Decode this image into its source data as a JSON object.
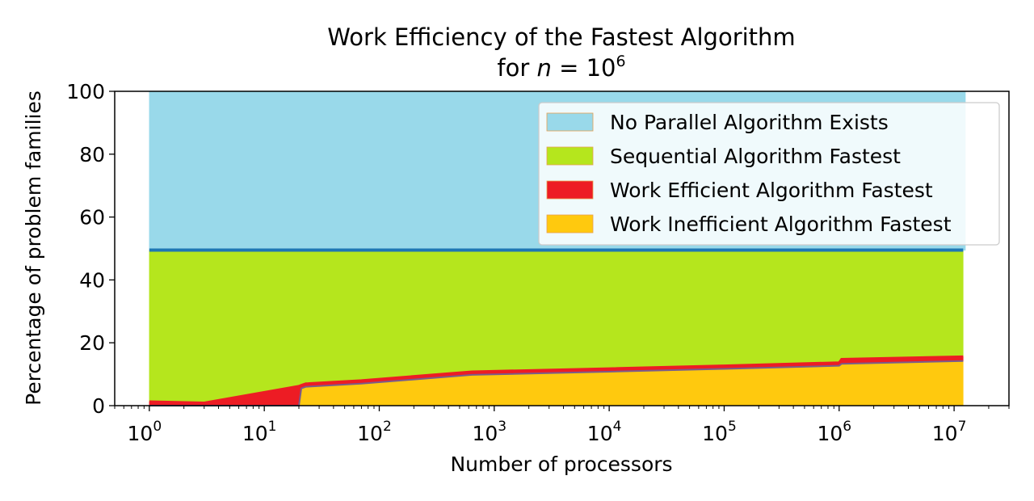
{
  "chart_data": {
    "type": "area",
    "title": "Work Efficiency of the Fastest Algorithm",
    "subtitle_prefix": "for ",
    "subtitle_var": "n",
    "subtitle_eq": " = 10",
    "subtitle_exp": "6",
    "xlabel": "Number of processors",
    "ylabel": "Percentage of problem families",
    "xscale": "log",
    "xlim": [
      0.5,
      30000000
    ],
    "ylim": [
      0,
      100
    ],
    "xticks": [
      {
        "value": 1,
        "base": "10",
        "exp": "0"
      },
      {
        "value": 10,
        "base": "10",
        "exp": "1"
      },
      {
        "value": 100,
        "base": "10",
        "exp": "2"
      },
      {
        "value": 1000,
        "base": "10",
        "exp": "3"
      },
      {
        "value": 10000,
        "base": "10",
        "exp": "4"
      },
      {
        "value": 100000,
        "base": "10",
        "exp": "5"
      },
      {
        "value": 1000000,
        "base": "10",
        "exp": "6"
      },
      {
        "value": 10000000,
        "base": "10",
        "exp": "7"
      }
    ],
    "yticks": [
      "0",
      "20",
      "40",
      "60",
      "80",
      "100"
    ],
    "x": [
      1,
      3,
      20,
      21,
      23,
      70,
      640,
      10000,
      100000,
      1000000,
      1050000,
      12000000
    ],
    "series": [
      {
        "name": "Work Inefficient Algorithm Fastest",
        "color": "#ffc90e",
        "values": [
          0,
          0,
          0,
          5.5,
          6.0,
          7.0,
          9.8,
          10.8,
          11.7,
          12.7,
          13.3,
          14.2
        ]
      },
      {
        "name": "Work Efficient Algorithm Fastest",
        "color": "#ed1c24",
        "values": [
          1.3,
          0.9,
          6.2,
          1.0,
          1.0,
          1.0,
          1.0,
          1.0,
          1.0,
          1.0,
          1.5,
          1.4
        ]
      },
      {
        "name": "Sequential Algorithm Fastest",
        "color": "#b5e61d",
        "values": [
          48.2,
          48.6,
          43.3,
          43.0,
          42.5,
          41.5,
          38.7,
          37.7,
          36.8,
          35.8,
          34.7,
          33.9
        ]
      },
      {
        "name": "No Parallel Algorithm Exists",
        "color": "#99d9ea",
        "values": [
          50.5,
          50.5,
          50.5,
          50.5,
          50.5,
          50.5,
          50.5,
          50.5,
          50.5,
          50.5,
          50.5,
          50.5
        ]
      }
    ],
    "divider_color": "#1f77b4",
    "legend": {
      "position": "upper-right",
      "entries": [
        {
          "label": "No Parallel Algorithm Exists",
          "color": "#99d9ea"
        },
        {
          "label": "Sequential Algorithm Fastest",
          "color": "#b5e61d"
        },
        {
          "label": "Work Efficient Algorithm Fastest",
          "color": "#ed1c24"
        },
        {
          "label": "Work Inefficient Algorithm Fastest",
          "color": "#ffc90e"
        }
      ]
    }
  }
}
